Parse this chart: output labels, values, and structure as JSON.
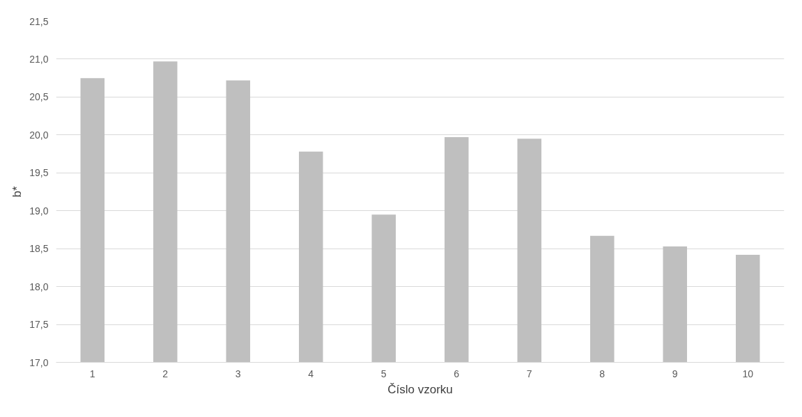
{
  "chart_data": {
    "type": "bar",
    "xlabel": "Číslo vzorku",
    "ylabel": "b*",
    "categories": [
      "1",
      "2",
      "3",
      "4",
      "5",
      "6",
      "7",
      "8",
      "9",
      "10"
    ],
    "values": [
      20.75,
      20.97,
      20.72,
      19.78,
      18.95,
      19.97,
      19.95,
      18.67,
      18.53,
      18.42
    ],
    "color": "#bfbfbf",
    "ylim": [
      17.0,
      21.5
    ],
    "yticks": [
      {
        "value": 17.0,
        "label": "17,0"
      },
      {
        "value": 17.5,
        "label": "17,5"
      },
      {
        "value": 18.0,
        "label": "18,0"
      },
      {
        "value": 18.5,
        "label": "18,5"
      },
      {
        "value": 19.0,
        "label": "19,0"
      },
      {
        "value": 19.5,
        "label": "19,5"
      },
      {
        "value": 20.0,
        "label": "20,0"
      },
      {
        "value": 20.5,
        "label": "20,5"
      },
      {
        "value": 21.0,
        "label": "21,0"
      },
      {
        "value": 21.5,
        "label": "21,5"
      }
    ],
    "grid": "y"
  }
}
